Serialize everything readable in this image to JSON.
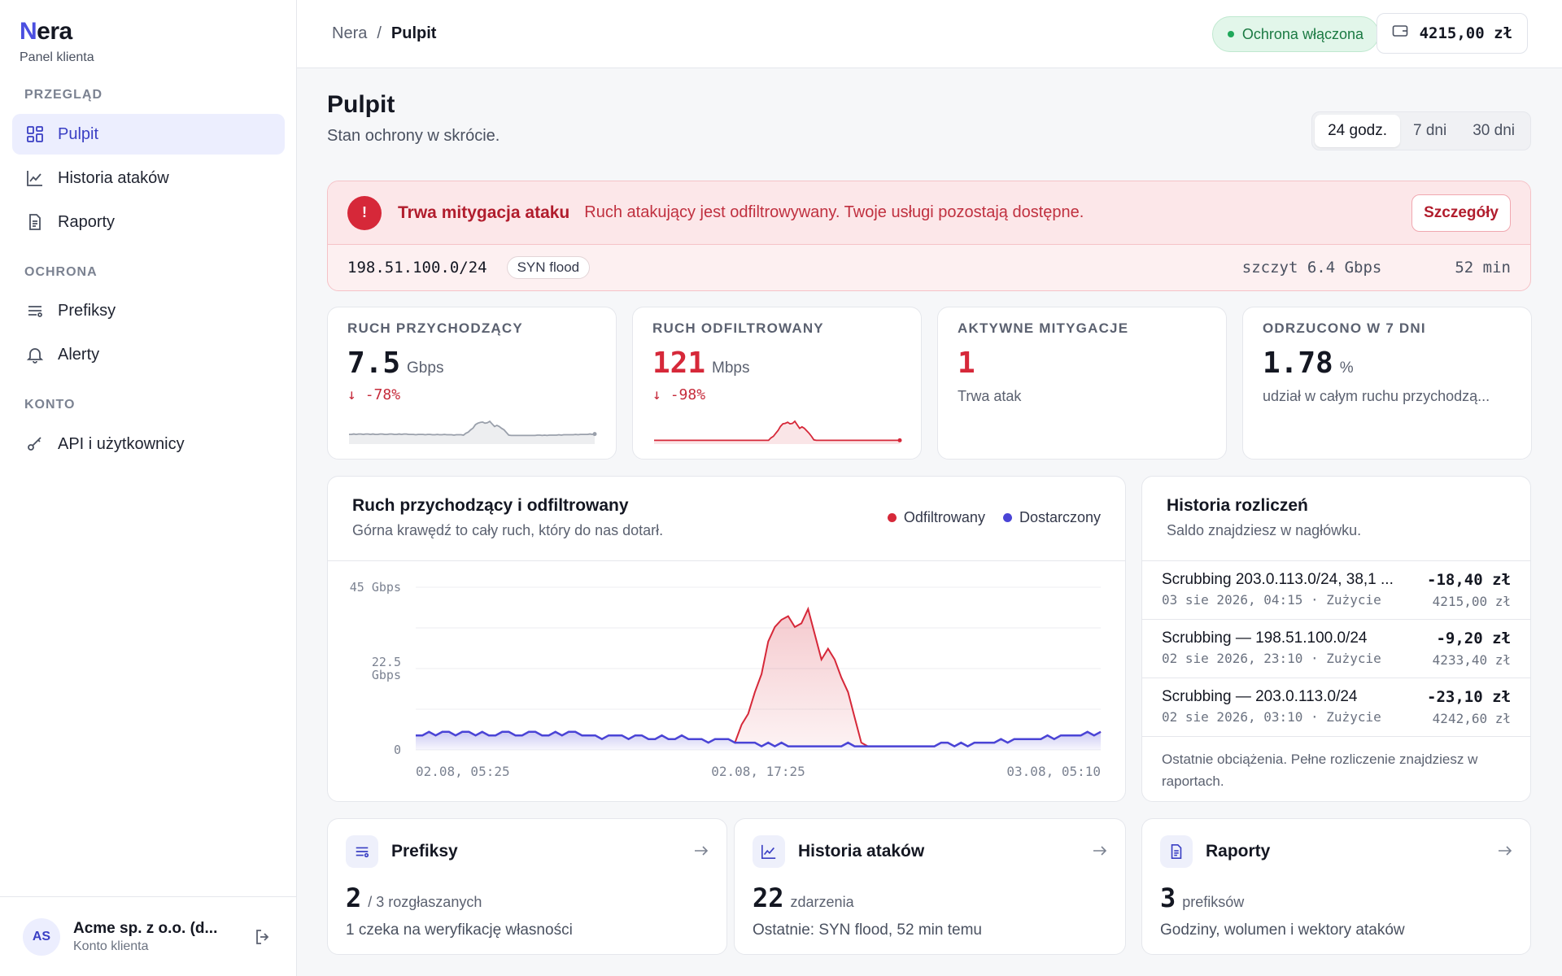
{
  "brand": {
    "logo_n": "N",
    "logo_rest": "era",
    "subtitle": "Panel klienta"
  },
  "nav": {
    "sections": [
      "PRZEGLĄD",
      "OCHRONA",
      "KONTO"
    ],
    "items": [
      {
        "label": "Pulpit",
        "icon": "grid-icon",
        "active": true
      },
      {
        "label": "Historia ataków",
        "icon": "chart-line-icon"
      },
      {
        "label": "Raporty",
        "icon": "document-icon"
      },
      {
        "label": "Prefiksy",
        "icon": "list-icon"
      },
      {
        "label": "Alerty",
        "icon": "bell-icon"
      },
      {
        "label": "API i użytkownicy",
        "icon": "key-icon"
      }
    ]
  },
  "user": {
    "initials": "AS",
    "name": "Acme sp. z o.o. (d...",
    "role": "Konto klienta"
  },
  "topbar": {
    "breadcrumb": [
      "Nera",
      "/",
      "Pulpit"
    ],
    "protection": "Ochrona włączona",
    "balance": "4215,00 zł"
  },
  "page": {
    "title": "Pulpit",
    "subtitle": "Stan ochrony w skrócie."
  },
  "range": {
    "options": [
      "24 godz.",
      "7 dni",
      "30 dni"
    ],
    "selected": "24 godz."
  },
  "alert": {
    "icon_text": "!",
    "title": "Trwa mitygacja ataku",
    "message": "Ruch atakujący jest odfiltrowywany. Twoje usługi pozostają dostępne.",
    "button": "Szczegóły",
    "prefix": "198.51.100.0/24",
    "vector": "SYN flood",
    "peak": "szczyt 6.4 Gbps",
    "duration": "52 min"
  },
  "kpis": [
    {
      "label": "RUCH PRZYCHODZĄCY",
      "value": "7.5",
      "unit": "Gbps",
      "delta": "-78%",
      "color": "#1a1d29"
    },
    {
      "label": "RUCH ODFILTROWANY",
      "value": "121",
      "unit": "Mbps",
      "delta": "-98%",
      "color": "#d62839"
    },
    {
      "label": "AKTYWNE MITYGACJE",
      "value": "1",
      "unit": "",
      "note": "Trwa atak",
      "color": "#d62839"
    },
    {
      "label": "ODRZUCONO W 7 DNI",
      "value": "1.78",
      "unit": "%",
      "note": "udział w całym ruchu przychodzą...",
      "color": "#1a1d29"
    }
  ],
  "traffic_card": {
    "title": "Ruch przychodzący i odfiltrowany",
    "subtitle": "Górna krawędź to cały ruch, który do nas dotarł.",
    "legend": [
      {
        "name": "Odfiltrowany",
        "color": "#d62839"
      },
      {
        "name": "Dostarczony",
        "color": "#4a44d6"
      }
    ]
  },
  "chart_data": {
    "type": "area",
    "title": "Ruch przychodzący i odfiltrowany",
    "ylim": [
      0,
      45
    ],
    "y_ticks": [
      "45 Gbps",
      "22.5 Gbps",
      "0"
    ],
    "x_ticks": [
      "02.08, 05:25",
      "02.08, 17:25",
      "03.08, 05:10"
    ],
    "series": [
      {
        "name": "Odfiltrowany",
        "color": "#d62839",
        "values": [
          0,
          0,
          0,
          0,
          0,
          0,
          0,
          0,
          0,
          0,
          0,
          0,
          0,
          0,
          0,
          0,
          0,
          0,
          0,
          0,
          0,
          0,
          0,
          0,
          0,
          0,
          0,
          0,
          0,
          0,
          0,
          0,
          0,
          0,
          0,
          0,
          0,
          0,
          0,
          0,
          0,
          0,
          0,
          0,
          0,
          0,
          0,
          0,
          0,
          5,
          8,
          14,
          20,
          28,
          33,
          34,
          36,
          33,
          34,
          38,
          31,
          24,
          27,
          24,
          19,
          14,
          8,
          1,
          0,
          0,
          0,
          0,
          0,
          0,
          0,
          0,
          0,
          0,
          0,
          0,
          0,
          0,
          0,
          0,
          0,
          0,
          0,
          0,
          0,
          0,
          0,
          0,
          0,
          0,
          0,
          0,
          0,
          0,
          0,
          0,
          0,
          0,
          0,
          0
        ]
      },
      {
        "name": "Dostarczony",
        "color": "#4a44d6",
        "values": [
          4,
          4,
          5,
          4,
          5,
          5,
          4,
          5,
          5,
          4,
          5,
          4,
          4,
          5,
          5,
          4,
          4,
          5,
          5,
          4,
          4,
          5,
          4,
          5,
          5,
          4,
          4,
          4,
          3,
          4,
          4,
          4,
          3,
          4,
          4,
          3,
          3,
          4,
          3,
          3,
          4,
          3,
          3,
          3,
          2,
          3,
          3,
          3,
          2,
          2,
          2,
          2,
          1,
          2,
          1,
          2,
          1,
          1,
          1,
          1,
          1,
          1,
          1,
          1,
          1,
          2,
          1,
          1,
          1,
          1,
          1,
          1,
          1,
          1,
          1,
          1,
          1,
          1,
          1,
          2,
          2,
          1,
          2,
          1,
          2,
          2,
          2,
          2,
          3,
          2,
          3,
          3,
          3,
          3,
          3,
          4,
          3,
          4,
          4,
          4,
          4,
          5,
          4,
          5
        ]
      }
    ]
  },
  "billing": {
    "title": "Historia rozliczeń",
    "subtitle": "Saldo znajdziesz w nagłówku.",
    "rows": [
      {
        "desc": "Scrubbing 203.0.113.0/24, 38,1 ...",
        "meta": "03 sie 2026, 04:15 · Zużycie",
        "amount": "-18,40 zł",
        "balance": "4215,00 zł"
      },
      {
        "desc": "Scrubbing — 198.51.100.0/24",
        "meta": "02 sie 2026, 23:10 · Zużycie",
        "amount": "-9,20 zł",
        "balance": "4233,40 zł"
      },
      {
        "desc": "Scrubbing — 203.0.113.0/24",
        "meta": "02 sie 2026, 03:10 · Zużycie",
        "amount": "-23,10 zł",
        "balance": "4242,60 zł"
      }
    ],
    "footer": "Ostatnie obciążenia. Pełne rozliczenie znajdziesz w raportach."
  },
  "tiles": [
    {
      "title": "Prefiksy",
      "icon": "list-icon",
      "num": "2",
      "unit": "/ 3 rozgłaszanych",
      "note": "1 czeka na weryfikację własności"
    },
    {
      "title": "Historia ataków",
      "icon": "chart-line-icon",
      "num": "22",
      "unit": "zdarzenia",
      "note": "Ostatnie: SYN flood, 52 min temu"
    },
    {
      "title": "Raporty",
      "icon": "document-icon",
      "num": "3",
      "unit": "prefiksów",
      "note": "Godziny, wolumen i wektory ataków"
    }
  ],
  "icons": {
    "arrow": "arrow-right-icon",
    "wallet": "wallet-icon",
    "logout": "logout-icon",
    "down": "arrow-down-icon"
  }
}
